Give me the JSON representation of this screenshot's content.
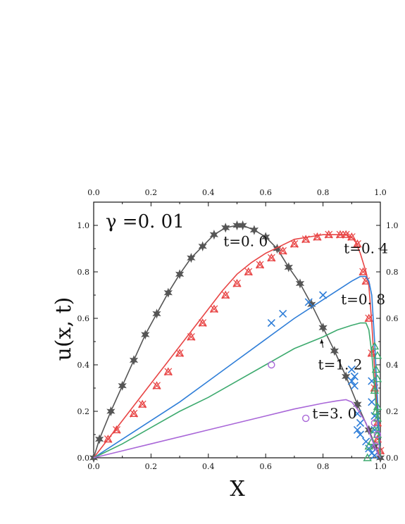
{
  "chart_data": {
    "type": "line",
    "title": "",
    "xlabel": "X",
    "ylabel": "u(x, t)",
    "xlim": [
      0.0,
      1.0
    ],
    "ylim": [
      0.0,
      1.1
    ],
    "xticks": [
      "0.0",
      "0.2",
      "0.4",
      "0.6",
      "0.8",
      "1.0"
    ],
    "yticks": [
      "0.0",
      "0.2",
      "0.4",
      "0.6",
      "0.8",
      "1.0"
    ],
    "mirror_top_ticks": true,
    "mirror_right_ticks": true,
    "grid": false,
    "legend": "none",
    "parameter_label": "γ =0. 01",
    "series": [
      {
        "time_label": "t=0. 0",
        "color": "#555555",
        "marker": "star",
        "line": [
          [
            0.0,
            0.0
          ],
          [
            0.02,
            0.08
          ],
          [
            0.06,
            0.2
          ],
          [
            0.1,
            0.31
          ],
          [
            0.14,
            0.42
          ],
          [
            0.18,
            0.53
          ],
          [
            0.22,
            0.62
          ],
          [
            0.26,
            0.71
          ],
          [
            0.3,
            0.79
          ],
          [
            0.34,
            0.86
          ],
          [
            0.38,
            0.91
          ],
          [
            0.42,
            0.96
          ],
          [
            0.46,
            0.99
          ],
          [
            0.5,
            1.0
          ],
          [
            0.52,
            1.0
          ],
          [
            0.56,
            0.98
          ],
          [
            0.6,
            0.95
          ],
          [
            0.64,
            0.9
          ],
          [
            0.68,
            0.82
          ],
          [
            0.72,
            0.75
          ],
          [
            0.76,
            0.66
          ],
          [
            0.8,
            0.56
          ],
          [
            0.84,
            0.46
          ],
          [
            0.88,
            0.35
          ],
          [
            0.92,
            0.23
          ],
          [
            0.96,
            0.12
          ],
          [
            1.0,
            0.0
          ]
        ],
        "markers": [
          [
            0.0,
            0.0
          ],
          [
            0.02,
            0.08
          ],
          [
            0.06,
            0.2
          ],
          [
            0.1,
            0.31
          ],
          [
            0.14,
            0.42
          ],
          [
            0.18,
            0.53
          ],
          [
            0.22,
            0.62
          ],
          [
            0.26,
            0.71
          ],
          [
            0.3,
            0.79
          ],
          [
            0.34,
            0.86
          ],
          [
            0.38,
            0.91
          ],
          [
            0.42,
            0.96
          ],
          [
            0.46,
            0.99
          ],
          [
            0.5,
            1.0
          ],
          [
            0.52,
            1.0
          ],
          [
            0.56,
            0.98
          ],
          [
            0.6,
            0.95
          ],
          [
            0.64,
            0.9
          ],
          [
            0.68,
            0.82
          ],
          [
            0.72,
            0.75
          ],
          [
            0.76,
            0.66
          ],
          [
            0.8,
            0.56
          ],
          [
            0.84,
            0.46
          ],
          [
            0.88,
            0.35
          ],
          [
            0.92,
            0.23
          ],
          [
            0.96,
            0.12
          ],
          [
            0.98,
            0.05
          ],
          [
            1.0,
            0.0
          ]
        ]
      },
      {
        "time_label": "t=0. 4",
        "color": "#e84545",
        "marker": "triangle-cross",
        "line": [
          [
            0.0,
            0.0
          ],
          [
            0.05,
            0.08
          ],
          [
            0.1,
            0.16
          ],
          [
            0.15,
            0.24
          ],
          [
            0.2,
            0.32
          ],
          [
            0.25,
            0.4
          ],
          [
            0.3,
            0.48
          ],
          [
            0.35,
            0.56
          ],
          [
            0.4,
            0.64
          ],
          [
            0.45,
            0.72
          ],
          [
            0.5,
            0.79
          ],
          [
            0.55,
            0.84
          ],
          [
            0.6,
            0.88
          ],
          [
            0.65,
            0.91
          ],
          [
            0.7,
            0.94
          ],
          [
            0.75,
            0.95
          ],
          [
            0.8,
            0.96
          ],
          [
            0.85,
            0.96
          ],
          [
            0.88,
            0.96
          ],
          [
            0.91,
            0.94
          ],
          [
            0.93,
            0.88
          ],
          [
            0.95,
            0.8
          ],
          [
            0.96,
            0.74
          ],
          [
            0.97,
            0.58
          ],
          [
            0.98,
            0.38
          ],
          [
            0.99,
            0.18
          ],
          [
            1.0,
            0.0
          ]
        ],
        "markers": [
          [
            0.05,
            0.08
          ],
          [
            0.08,
            0.12
          ],
          [
            0.14,
            0.19
          ],
          [
            0.17,
            0.23
          ],
          [
            0.22,
            0.31
          ],
          [
            0.26,
            0.37
          ],
          [
            0.3,
            0.45
          ],
          [
            0.34,
            0.52
          ],
          [
            0.38,
            0.58
          ],
          [
            0.42,
            0.64
          ],
          [
            0.46,
            0.7
          ],
          [
            0.5,
            0.75
          ],
          [
            0.54,
            0.8
          ],
          [
            0.58,
            0.83
          ],
          [
            0.62,
            0.86
          ],
          [
            0.66,
            0.89
          ],
          [
            0.7,
            0.92
          ],
          [
            0.74,
            0.94
          ],
          [
            0.78,
            0.95
          ],
          [
            0.82,
            0.96
          ],
          [
            0.86,
            0.96
          ],
          [
            0.88,
            0.96
          ],
          [
            0.9,
            0.95
          ],
          [
            0.92,
            0.92
          ],
          [
            0.94,
            0.8
          ],
          [
            0.95,
            0.76
          ],
          [
            0.96,
            0.6
          ],
          [
            0.97,
            0.45
          ],
          [
            0.98,
            0.3
          ],
          [
            0.99,
            0.15
          ],
          [
            0.99,
            0.08
          ],
          [
            1.0,
            0.03
          ]
        ]
      },
      {
        "time_label": "t=0. 8",
        "color": "#2f7ed8",
        "marker": "x",
        "line": [
          [
            0.0,
            0.0
          ],
          [
            0.1,
            0.08
          ],
          [
            0.2,
            0.16
          ],
          [
            0.3,
            0.24
          ],
          [
            0.4,
            0.33
          ],
          [
            0.5,
            0.42
          ],
          [
            0.6,
            0.51
          ],
          [
            0.7,
            0.6
          ],
          [
            0.8,
            0.68
          ],
          [
            0.85,
            0.72
          ],
          [
            0.9,
            0.76
          ],
          [
            0.93,
            0.78
          ],
          [
            0.95,
            0.78
          ],
          [
            0.96,
            0.76
          ],
          [
            0.97,
            0.7
          ],
          [
            0.98,
            0.5
          ],
          [
            0.99,
            0.25
          ],
          [
            1.0,
            0.0
          ]
        ],
        "markers": [
          [
            0.62,
            0.58
          ],
          [
            0.66,
            0.62
          ],
          [
            0.75,
            0.67
          ],
          [
            0.8,
            0.7
          ],
          [
            0.9,
            0.38
          ],
          [
            0.91,
            0.35
          ],
          [
            0.9,
            0.33
          ],
          [
            0.91,
            0.31
          ],
          [
            0.92,
            0.19
          ],
          [
            0.93,
            0.15
          ],
          [
            0.92,
            0.12
          ],
          [
            0.93,
            0.1
          ],
          [
            0.95,
            0.07
          ],
          [
            0.96,
            0.04
          ],
          [
            0.97,
            0.02
          ],
          [
            0.98,
            0.01
          ],
          [
            0.97,
            0.33
          ],
          [
            0.97,
            0.24
          ],
          [
            0.98,
            0.18
          ],
          [
            0.98,
            0.12
          ]
        ]
      },
      {
        "time_label": "t=1. 2",
        "color": "#3daa6e",
        "marker": "triangle",
        "line": [
          [
            0.0,
            0.0
          ],
          [
            0.1,
            0.06
          ],
          [
            0.2,
            0.13
          ],
          [
            0.3,
            0.2
          ],
          [
            0.4,
            0.26
          ],
          [
            0.5,
            0.33
          ],
          [
            0.6,
            0.4
          ],
          [
            0.7,
            0.47
          ],
          [
            0.8,
            0.52
          ],
          [
            0.85,
            0.55
          ],
          [
            0.9,
            0.57
          ],
          [
            0.93,
            0.58
          ],
          [
            0.95,
            0.58
          ],
          [
            0.96,
            0.55
          ],
          [
            0.97,
            0.45
          ],
          [
            0.98,
            0.3
          ],
          [
            0.99,
            0.15
          ],
          [
            1.0,
            0.0
          ]
        ],
        "markers": [
          [
            0.98,
            0.48
          ],
          [
            0.99,
            0.44
          ],
          [
            0.985,
            0.38
          ],
          [
            0.99,
            0.34
          ],
          [
            0.98,
            0.29
          ],
          [
            0.99,
            0.22
          ],
          [
            0.985,
            0.2
          ],
          [
            0.99,
            0.17
          ],
          [
            0.98,
            0.12
          ],
          [
            0.99,
            0.1
          ],
          [
            0.97,
            0.07
          ],
          [
            0.96,
            0.05
          ],
          [
            0.955,
            0.0
          ]
        ]
      },
      {
        "time_label": "t=3. 0",
        "color": "#a967d8",
        "marker": "circle",
        "line": [
          [
            0.0,
            0.0
          ],
          [
            0.1,
            0.03
          ],
          [
            0.2,
            0.06
          ],
          [
            0.3,
            0.09
          ],
          [
            0.4,
            0.12
          ],
          [
            0.5,
            0.15
          ],
          [
            0.6,
            0.18
          ],
          [
            0.7,
            0.21
          ],
          [
            0.8,
            0.235
          ],
          [
            0.85,
            0.245
          ],
          [
            0.88,
            0.25
          ],
          [
            0.9,
            0.24
          ],
          [
            0.92,
            0.21
          ],
          [
            0.95,
            0.15
          ],
          [
            0.97,
            0.08
          ],
          [
            0.99,
            0.02
          ],
          [
            1.0,
            0.0
          ]
        ],
        "markers": [
          [
            0.62,
            0.4
          ],
          [
            0.74,
            0.17
          ],
          [
            0.98,
            0.15
          ],
          [
            0.99,
            0.1
          ],
          [
            0.985,
            0.05
          ]
        ]
      }
    ],
    "annotations": [
      {
        "text": "t=0. 0",
        "x": 0.53,
        "y": 0.91
      },
      {
        "text": "t=0. 4",
        "x": 0.95,
        "y": 0.88
      },
      {
        "text": "t=0. 8",
        "x": 0.94,
        "y": 0.66
      },
      {
        "text": "t=1. 2",
        "x": 0.86,
        "y": 0.38
      },
      {
        "text": "t=3. 0",
        "x": 0.84,
        "y": 0.17
      }
    ]
  }
}
